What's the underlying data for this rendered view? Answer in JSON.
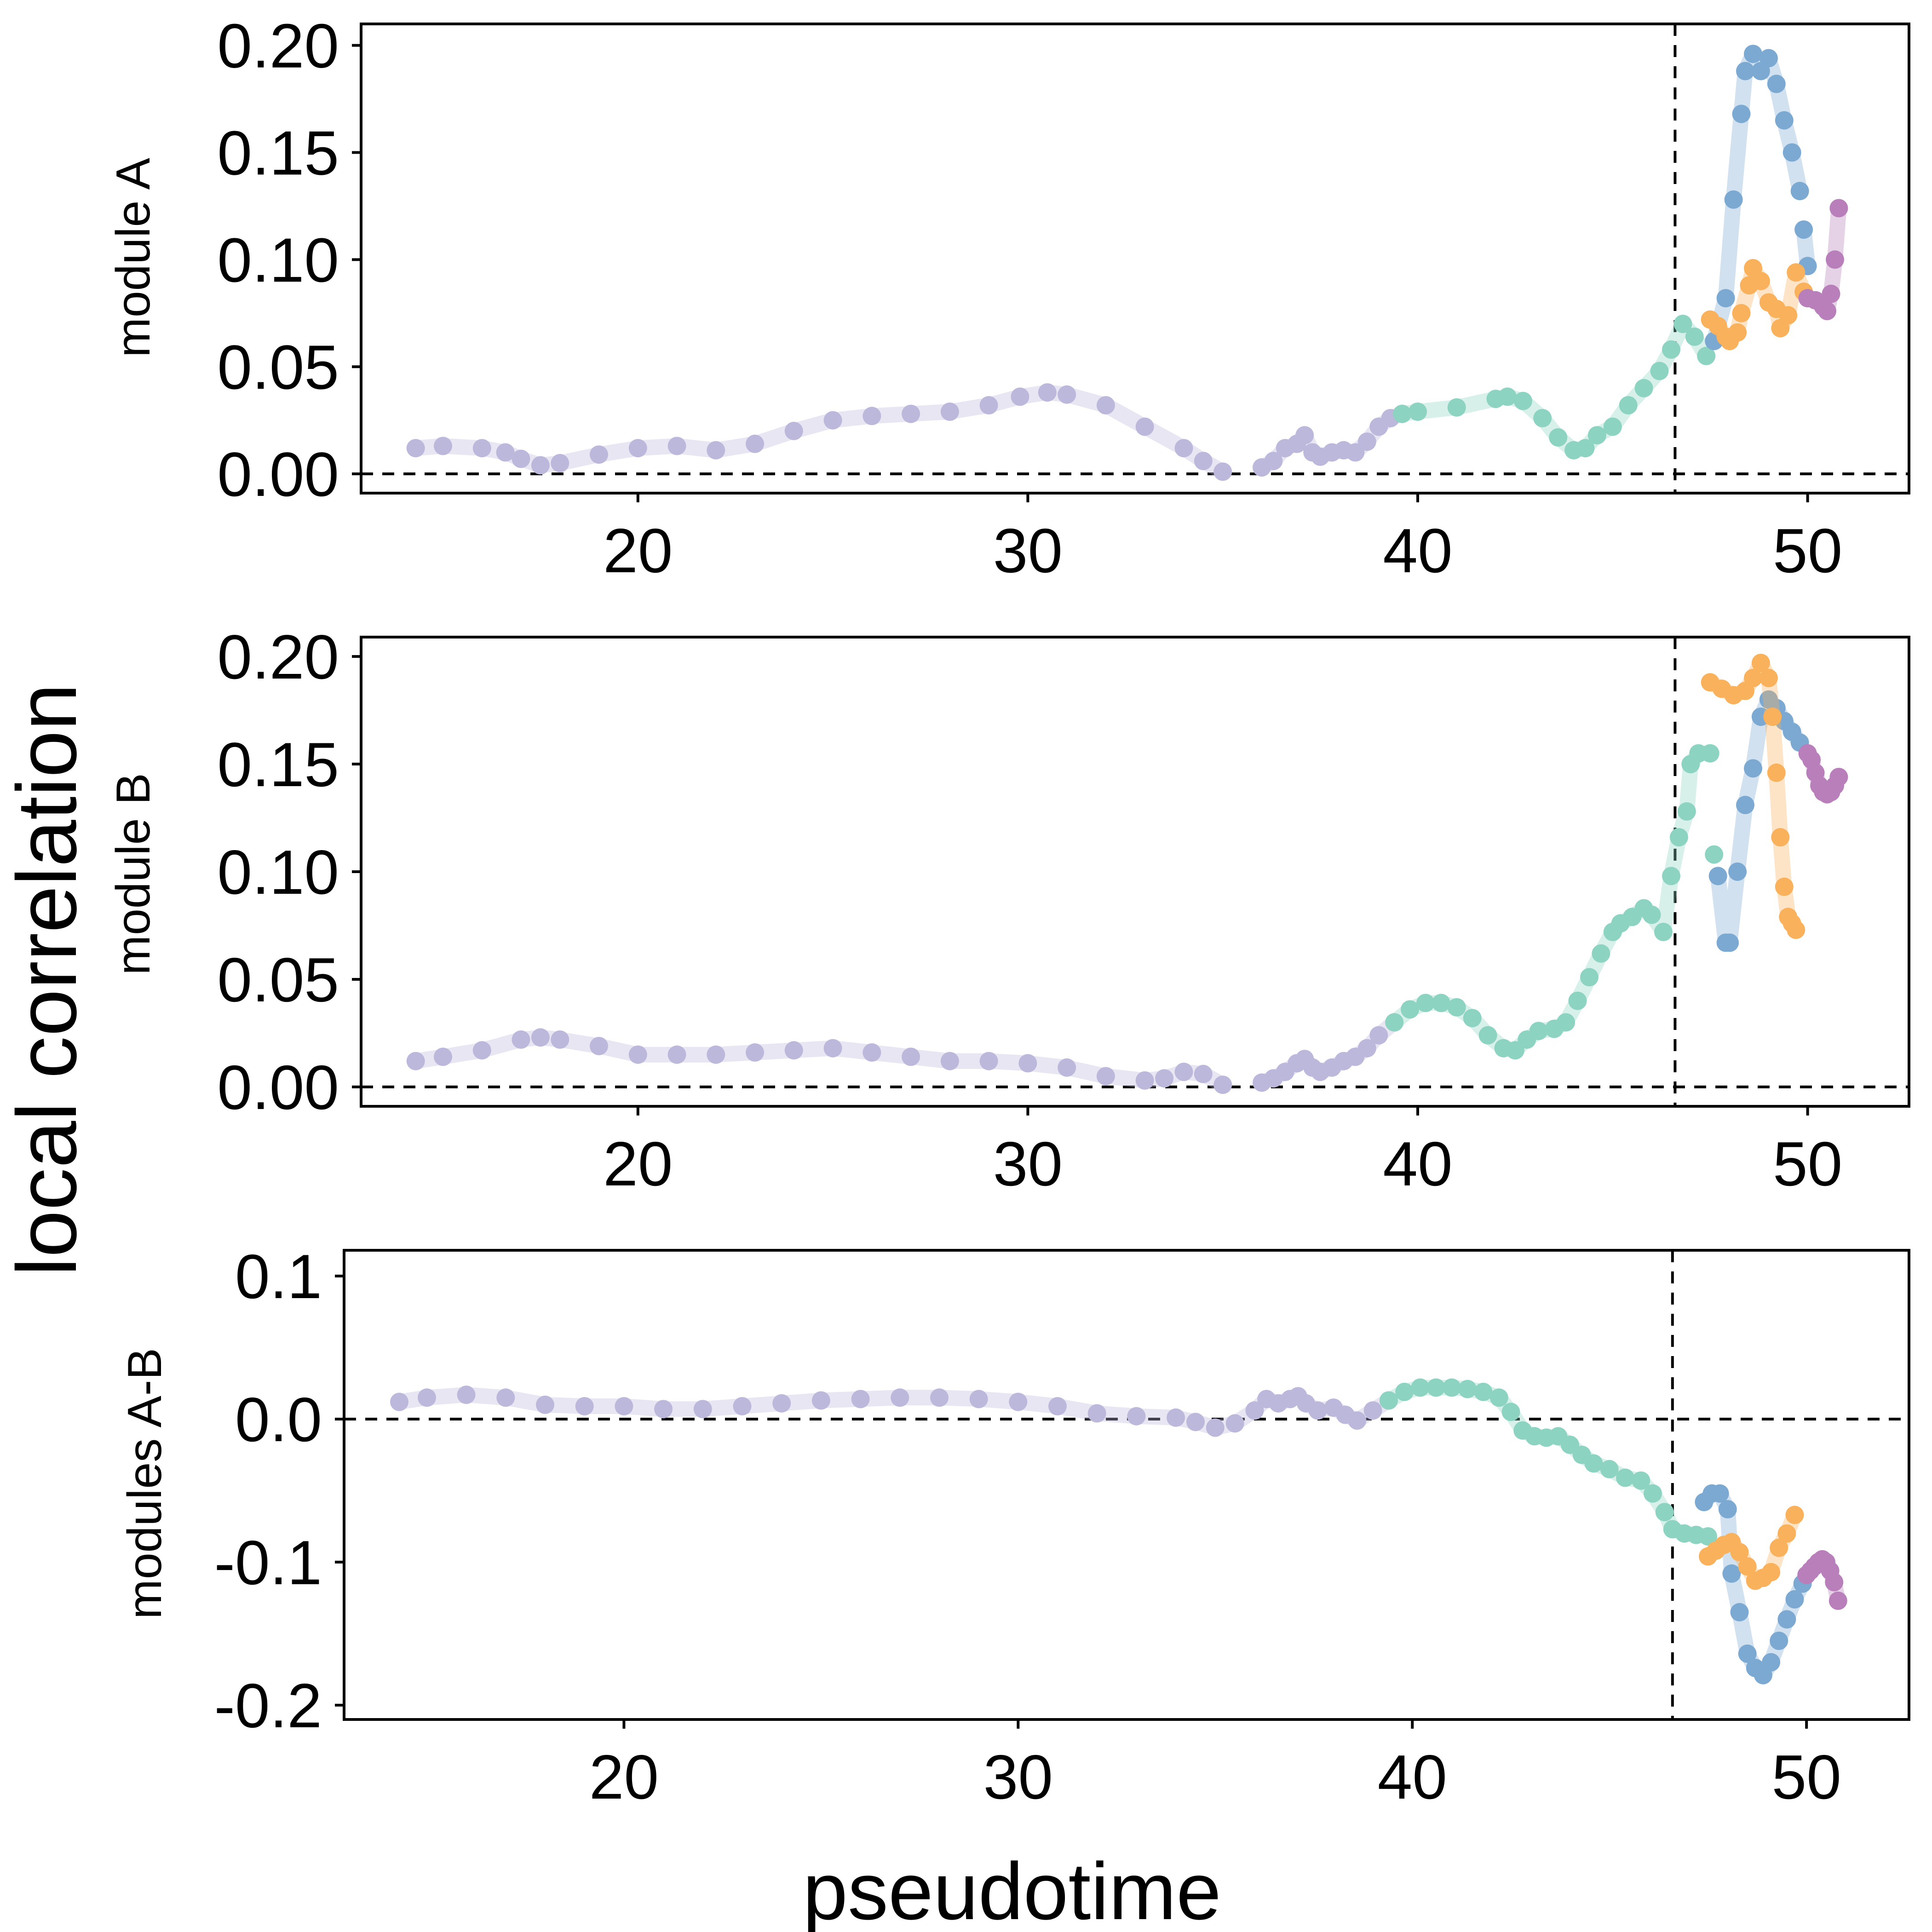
{
  "figure": {
    "ylabel": "local correlation",
    "xlabel": "pseudotime"
  },
  "chart_data": [
    {
      "type": "scatter",
      "title": "",
      "ylabel": "module A",
      "xlim": [
        12.9,
        52.6
      ],
      "ylim": [
        -0.009,
        0.21
      ],
      "xticks": [
        "20",
        "30",
        "40",
        "50"
      ],
      "yticks": [
        "0.00",
        "0.05",
        "0.10",
        "0.15",
        "0.20"
      ],
      "ref_lines": {
        "vertical_x": 46.6,
        "horizontal_y": 0.0
      },
      "series": [
        {
          "color": "#bcb8db",
          "x": [
            14.3,
            15.0,
            16.0,
            16.6,
            17.0,
            17.5,
            18.0,
            19.0,
            20.0,
            21.0,
            22.0,
            23.0,
            24.0,
            25.0,
            26.0,
            27.0,
            28.0,
            29.0,
            29.8,
            30.5,
            31.0,
            32.0,
            33.0,
            34.0,
            34.5,
            35.0
          ],
          "y": [
            0.012,
            0.013,
            0.012,
            0.01,
            0.007,
            0.004,
            0.005,
            0.009,
            0.012,
            0.013,
            0.011,
            0.014,
            0.02,
            0.025,
            0.027,
            0.028,
            0.029,
            0.032,
            0.036,
            0.038,
            0.037,
            0.032,
            0.022,
            0.012,
            0.006,
            0.001
          ]
        },
        {
          "color": "#bcb8db",
          "x": [
            36.0,
            36.3,
            36.6,
            36.9,
            37.1,
            37.3,
            37.5,
            37.8,
            38.1,
            38.4,
            38.7,
            39.0,
            39.3,
            39.6
          ],
          "y": [
            0.003,
            0.006,
            0.012,
            0.014,
            0.018,
            0.01,
            0.008,
            0.01,
            0.011,
            0.01,
            0.015,
            0.022,
            0.026,
            0.028
          ]
        },
        {
          "color": "#8dd3c1",
          "x": [
            39.6,
            40.0,
            41.0,
            42.0,
            42.3,
            42.7,
            43.2,
            43.6,
            44.0,
            44.3,
            44.6,
            45.0,
            45.4,
            45.8,
            46.2,
            46.5,
            46.8,
            47.1,
            47.4
          ],
          "y": [
            0.028,
            0.029,
            0.031,
            0.035,
            0.036,
            0.034,
            0.026,
            0.017,
            0.011,
            0.012,
            0.018,
            0.022,
            0.032,
            0.04,
            0.048,
            0.058,
            0.07,
            0.064,
            0.055
          ]
        },
        {
          "color": "#7ba9d2",
          "x": [
            47.6,
            47.9,
            48.1,
            48.3,
            48.4,
            48.6,
            48.8,
            49.0,
            49.2,
            49.4,
            49.6,
            49.8
          ],
          "y": [
            0.062,
            0.082,
            0.128,
            0.168,
            0.188,
            0.196,
            0.188,
            0.194,
            0.182,
            0.165,
            0.15,
            0.132
          ]
        },
        {
          "color": "#7ba9d2",
          "x": [
            49.9,
            50.0
          ],
          "y": [
            0.114,
            0.097
          ]
        },
        {
          "color": "#f9b15c",
          "x": [
            47.5,
            47.7,
            47.9,
            48.0,
            48.2,
            48.3,
            48.5,
            48.6,
            48.8,
            49.0,
            49.2,
            49.3,
            49.5,
            49.7,
            49.9
          ],
          "y": [
            0.072,
            0.069,
            0.064,
            0.062,
            0.066,
            0.075,
            0.088,
            0.096,
            0.09,
            0.08,
            0.077,
            0.068,
            0.074,
            0.094,
            0.085
          ]
        },
        {
          "color": "#b87fbb",
          "x": [
            50.0,
            50.2,
            50.4,
            50.5,
            50.6,
            50.7,
            50.8
          ],
          "y": [
            0.082,
            0.081,
            0.078,
            0.076,
            0.084,
            0.1,
            0.124
          ]
        }
      ]
    },
    {
      "type": "scatter",
      "title": "",
      "ylabel": "module B",
      "xlim": [
        12.9,
        52.6
      ],
      "ylim": [
        -0.009,
        0.209
      ],
      "xticks": [
        "20",
        "30",
        "40",
        "50"
      ],
      "yticks": [
        "0.00",
        "0.05",
        "0.10",
        "0.15",
        "0.20"
      ],
      "ref_lines": {
        "vertical_x": 46.6,
        "horizontal_y": 0.0
      },
      "series": [
        {
          "color": "#bcb8db",
          "x": [
            14.3,
            15.0,
            16.0,
            17.0,
            17.5,
            18.0,
            19.0,
            20.0,
            21.0,
            22.0,
            23.0,
            24.0,
            25.0,
            26.0,
            27.0,
            28.0,
            29.0,
            30.0,
            31.0,
            32.0,
            33.0,
            33.5,
            34.0,
            34.5,
            35.0
          ],
          "y": [
            0.012,
            0.014,
            0.017,
            0.022,
            0.023,
            0.022,
            0.019,
            0.015,
            0.015,
            0.015,
            0.016,
            0.017,
            0.018,
            0.016,
            0.014,
            0.012,
            0.012,
            0.011,
            0.009,
            0.005,
            0.003,
            0.004,
            0.007,
            0.006,
            0.001
          ]
        },
        {
          "color": "#bcb8db",
          "x": [
            36.0,
            36.3,
            36.6,
            36.9,
            37.1,
            37.3,
            37.5,
            37.8,
            38.1,
            38.4,
            38.7,
            39.0,
            39.4
          ],
          "y": [
            0.002,
            0.004,
            0.007,
            0.011,
            0.013,
            0.009,
            0.007,
            0.009,
            0.012,
            0.014,
            0.018,
            0.024,
            0.03
          ]
        },
        {
          "color": "#8dd3c1",
          "x": [
            39.4,
            39.8,
            40.2,
            40.6,
            41.0,
            41.4,
            41.8,
            42.2,
            42.5,
            42.8,
            43.1,
            43.5,
            43.8,
            44.1,
            44.4,
            44.7,
            45.0,
            45.2,
            45.5,
            45.8,
            46.0,
            46.3,
            46.5,
            46.7,
            46.9,
            47.0,
            47.2,
            47.5
          ],
          "y": [
            0.03,
            0.036,
            0.039,
            0.039,
            0.037,
            0.032,
            0.024,
            0.018,
            0.017,
            0.022,
            0.026,
            0.027,
            0.03,
            0.04,
            0.051,
            0.062,
            0.072,
            0.076,
            0.079,
            0.083,
            0.08,
            0.072,
            0.098,
            0.116,
            0.128,
            0.15,
            0.155,
            0.155
          ]
        },
        {
          "color": "#8dd3c1",
          "x": [
            47.6
          ],
          "y": [
            0.108
          ]
        },
        {
          "color": "#7ba9d2",
          "x": [
            47.7,
            47.9,
            48.0,
            48.2,
            48.4,
            48.6,
            48.8,
            49.0,
            49.2,
            49.4,
            49.6,
            49.8
          ],
          "y": [
            0.098,
            0.067,
            0.067,
            0.1,
            0.131,
            0.148,
            0.172,
            0.18,
            0.176,
            0.17,
            0.165,
            0.16
          ]
        },
        {
          "color": "#f9b15c",
          "x": [
            47.5,
            47.8,
            48.1,
            48.4,
            48.6,
            48.8,
            49.0,
            49.1,
            49.2,
            49.3,
            49.4,
            49.5,
            49.6,
            49.7
          ],
          "y": [
            0.188,
            0.185,
            0.182,
            0.184,
            0.19,
            0.197,
            0.19,
            0.172,
            0.146,
            0.116,
            0.093,
            0.079,
            0.076,
            0.073
          ]
        },
        {
          "color": "#b87fbb",
          "x": [
            50.0,
            50.1,
            50.2,
            50.3,
            50.4,
            50.5,
            50.6,
            50.7,
            50.8
          ],
          "y": [
            0.155,
            0.152,
            0.146,
            0.14,
            0.137,
            0.136,
            0.137,
            0.14,
            0.144
          ]
        }
      ]
    },
    {
      "type": "scatter",
      "title": "",
      "ylabel": "modules A-B",
      "xlim": [
        12.9,
        52.6
      ],
      "ylim": [
        -0.21,
        0.118
      ],
      "xticks": [
        "20",
        "30",
        "40",
        "50"
      ],
      "yticks": [
        "0.1",
        "0.0",
        "-0.1",
        "-0.2"
      ],
      "ytick_values": [
        0.1,
        0.0,
        -0.1,
        -0.2
      ],
      "ref_lines": {
        "vertical_x": 46.6,
        "horizontal_y": 0.0
      },
      "series": [
        {
          "color": "#bcb8db",
          "x": [
            14.3,
            15.0,
            16.0,
            17.0,
            18.0,
            19.0,
            20.0,
            21.0,
            22.0,
            23.0,
            24.0,
            25.0,
            26.0,
            27.0,
            28.0,
            29.0,
            30.0,
            31.0,
            32.0,
            33.0,
            34.0,
            34.5,
            35.0,
            35.5,
            36.0,
            36.3,
            36.6,
            36.9,
            37.1,
            37.3,
            37.6,
            38.0,
            38.3,
            38.6,
            39.0,
            39.4
          ],
          "y": [
            0.012,
            0.015,
            0.017,
            0.015,
            0.01,
            0.009,
            0.009,
            0.007,
            0.007,
            0.009,
            0.011,
            0.013,
            0.014,
            0.015,
            0.015,
            0.014,
            0.012,
            0.009,
            0.004,
            0.002,
            0.001,
            -0.002,
            -0.006,
            -0.003,
            0.006,
            0.014,
            0.011,
            0.014,
            0.016,
            0.011,
            0.006,
            0.008,
            0.003,
            -0.001,
            0.006,
            0.013
          ]
        },
        {
          "color": "#8dd3c1",
          "x": [
            39.4,
            39.8,
            40.2,
            40.6,
            41.0,
            41.4,
            41.8,
            42.2,
            42.5,
            42.8,
            43.1,
            43.4,
            43.7,
            44.0,
            44.3,
            44.6,
            45.0,
            45.4,
            45.8,
            46.1,
            46.4,
            46.6,
            46.9,
            47.2,
            47.5
          ],
          "y": [
            0.013,
            0.019,
            0.022,
            0.022,
            0.022,
            0.021,
            0.019,
            0.015,
            0.005,
            -0.008,
            -0.012,
            -0.013,
            -0.012,
            -0.018,
            -0.025,
            -0.031,
            -0.035,
            -0.041,
            -0.043,
            -0.052,
            -0.065,
            -0.077,
            -0.08,
            -0.081,
            -0.082
          ]
        },
        {
          "color": "#7ba9d2",
          "x": [
            47.4,
            47.6,
            47.8,
            48.0,
            48.1,
            48.3,
            48.5,
            48.7,
            48.9,
            49.1,
            49.3,
            49.5,
            49.7,
            49.9
          ],
          "y": [
            -0.058,
            -0.052,
            -0.052,
            -0.063,
            -0.108,
            -0.135,
            -0.164,
            -0.174,
            -0.179,
            -0.17,
            -0.155,
            -0.14,
            -0.126,
            -0.115
          ]
        },
        {
          "color": "#f9b15c",
          "x": [
            47.5,
            47.7,
            47.9,
            48.1,
            48.3,
            48.5,
            48.7,
            48.9,
            49.1,
            49.3,
            49.5,
            49.7
          ],
          "y": [
            -0.096,
            -0.092,
            -0.088,
            -0.086,
            -0.093,
            -0.103,
            -0.113,
            -0.111,
            -0.107,
            -0.09,
            -0.08,
            -0.067
          ]
        },
        {
          "color": "#b87fbb",
          "x": [
            50.0,
            50.1,
            50.2,
            50.3,
            50.4,
            50.5,
            50.6,
            50.7,
            50.8
          ],
          "y": [
            -0.109,
            -0.106,
            -0.103,
            -0.1,
            -0.098,
            -0.1,
            -0.106,
            -0.114,
            -0.127
          ]
        }
      ]
    }
  ]
}
